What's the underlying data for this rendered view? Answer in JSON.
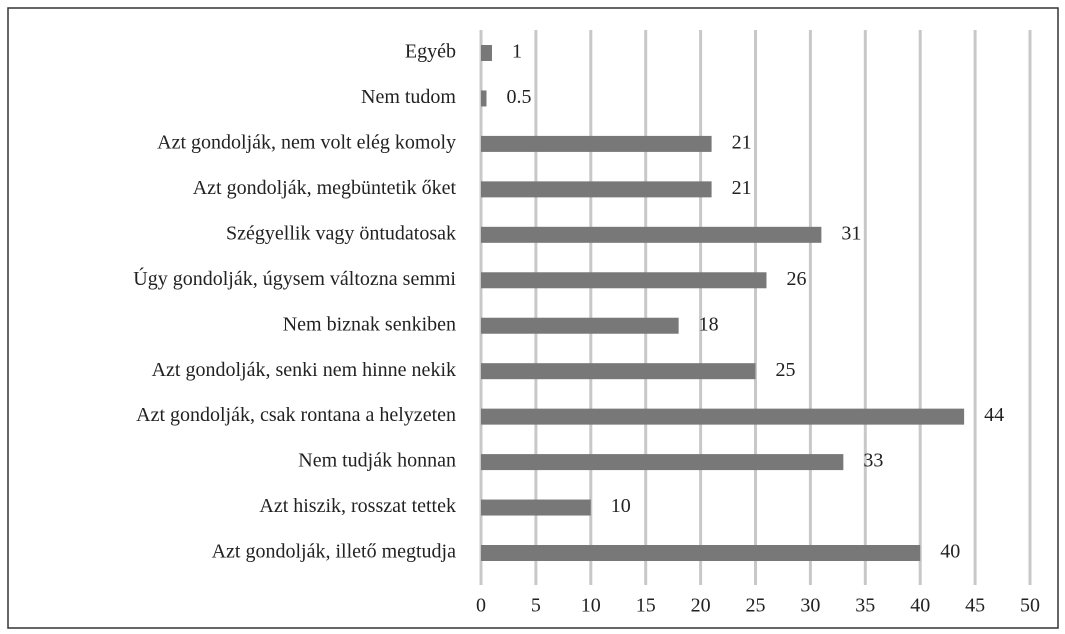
{
  "chart_data": {
    "type": "barh",
    "categories": [
      "Egyéb",
      "Nem tudom",
      "Azt gondolják, nem volt elég komoly",
      "Azt gondolják, megbüntetik őket",
      "Szégyellik vagy öntudatosak",
      "Úgy gondolják, úgysem változna semmi",
      "Nem biznak senkiben",
      "Azt gondolják, senki nem hinne nekik",
      "Azt gondolják, csak rontana a helyzeten",
      "Nem tudják honnan",
      "Azt hiszik, rosszat tettek",
      "Azt gondolják, illető megtudja"
    ],
    "values": [
      1,
      0.5,
      21,
      21,
      31,
      26,
      18,
      25,
      44,
      33,
      10,
      40
    ],
    "color": "#787878",
    "xlim": [
      0,
      50
    ],
    "xticks": [
      0,
      5,
      10,
      15,
      20,
      25,
      30,
      35,
      40,
      45,
      50
    ],
    "grid": true
  }
}
